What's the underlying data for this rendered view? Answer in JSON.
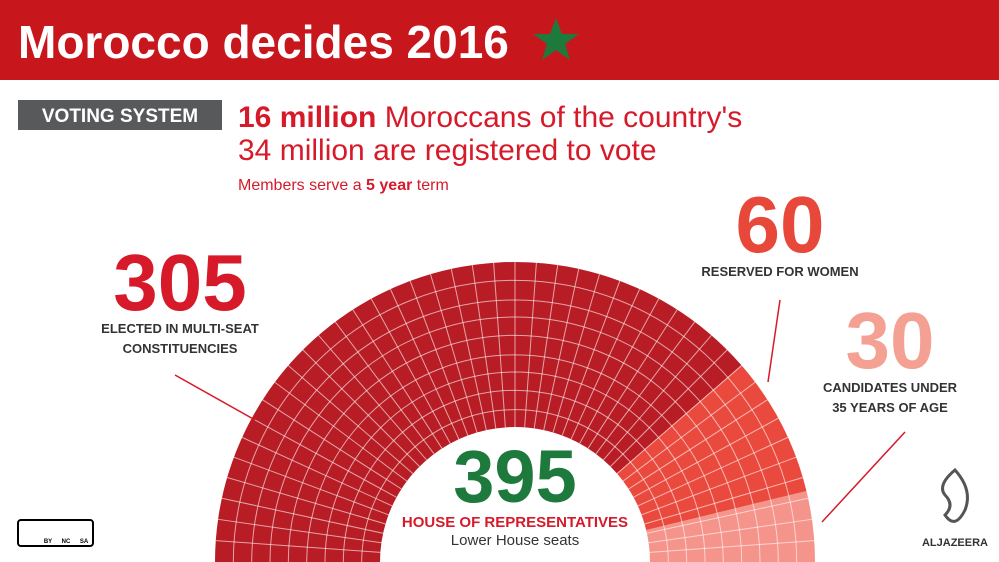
{
  "header": {
    "title": "Morocco decides 2016"
  },
  "intro": {
    "tag": "VOTING SYSTEM",
    "line1_bold": "16 million",
    "line1_rest": "Moroccans of the country's",
    "line2_bold": "34 million",
    "line2_rest": "are registered to vote",
    "term_pre": "Members serve a",
    "term_bold": "5 year",
    "term_post": "term"
  },
  "house": {
    "total": 395,
    "name": "HOUSE OF REPRESENTATIVES",
    "subtitle": "Lower House seats",
    "groups": [
      {
        "value": 305,
        "label_lines": [
          "ELECTED IN MULTI-SEAT",
          "CONSTITUENCIES"
        ],
        "color": "#b81d25",
        "number_color": "#d71a2a"
      },
      {
        "value": 60,
        "label_lines": [
          "RESERVED FOR WOMEN"
        ],
        "color": "#ea4a3e",
        "number_color": "#e8483a"
      },
      {
        "value": 30,
        "label_lines": [
          "CANDIDATES UNDER",
          "35 YEARS OF AGE"
        ],
        "color": "#f5948b",
        "number_color": "#f4a093"
      }
    ]
  },
  "footer": {
    "license": [
      "BY",
      "NC",
      "SA"
    ],
    "brand": "ALJAZEERA"
  }
}
